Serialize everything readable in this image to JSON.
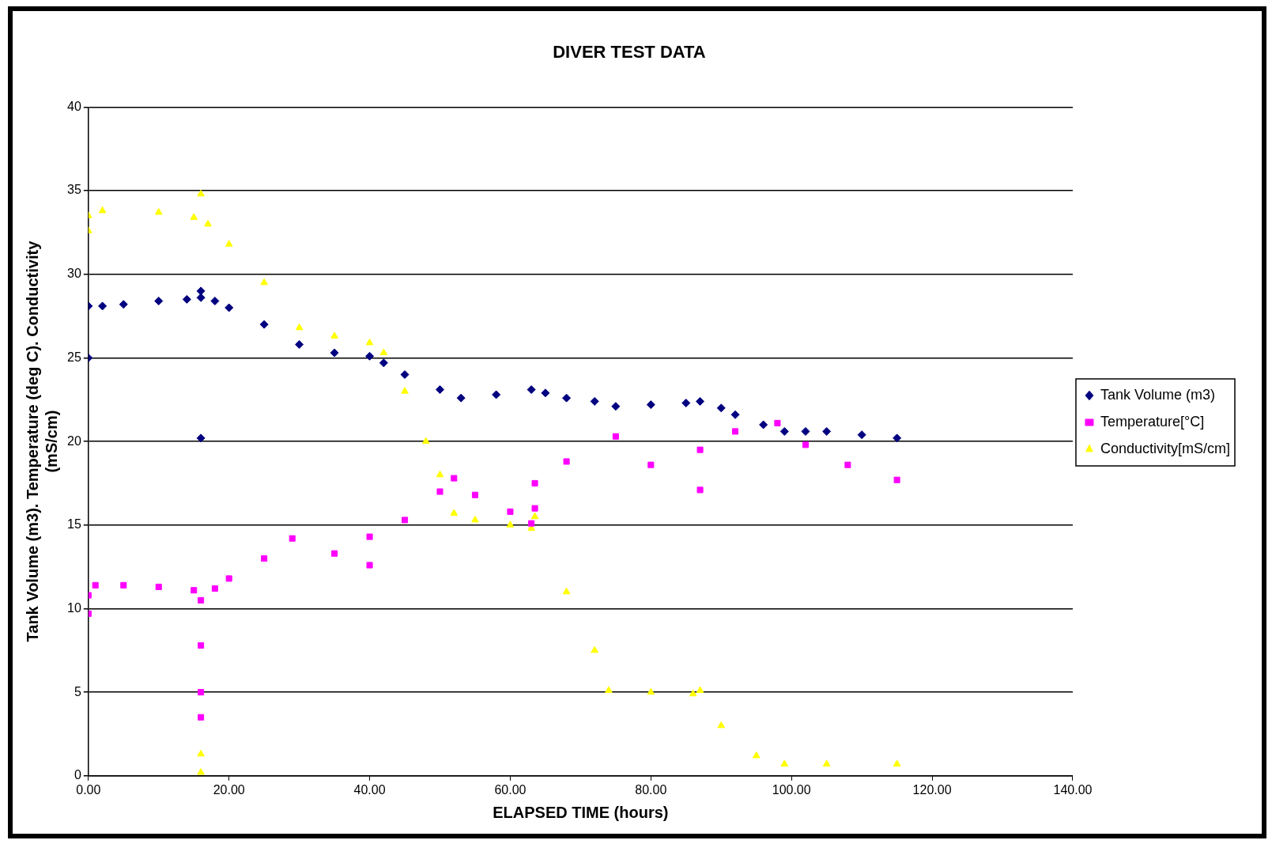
{
  "chart_data": {
    "type": "scatter",
    "title": "DIVER TEST DATA",
    "xlabel": "ELAPSED TIME (hours)",
    "ylabel": "Tank Volume (m3). Temperature (deg C). Conductivity (mS/cm)",
    "xlim": [
      0,
      140
    ],
    "xticks": [
      {
        "value": 0,
        "label": "0.00"
      },
      {
        "value": 20,
        "label": "20.00"
      },
      {
        "value": 40,
        "label": "40.00"
      },
      {
        "value": 60,
        "label": "60.00"
      },
      {
        "value": 80,
        "label": "80.00"
      },
      {
        "value": 100,
        "label": "100.00"
      },
      {
        "value": 120,
        "label": "120.00"
      },
      {
        "value": 140,
        "label": "140.00"
      }
    ],
    "ylim": [
      0,
      40
    ],
    "yticks": [
      0,
      5,
      10,
      15,
      20,
      25,
      30,
      35,
      40
    ],
    "grid": "y",
    "legend": "right",
    "series": [
      {
        "name": "Tank Volume (m3)",
        "color": "#000080",
        "marker": "diamond",
        "x": [
          0,
          0,
          2,
          5,
          10,
          14,
          16,
          16,
          16,
          18,
          20,
          25,
          30,
          35,
          40,
          42,
          45,
          50,
          53,
          58,
          63,
          65,
          68,
          72,
          75,
          80,
          85,
          87,
          90,
          92,
          96,
          99,
          102,
          105,
          110,
          115
        ],
        "values": [
          25,
          28.1,
          28.1,
          28.2,
          28.4,
          28.5,
          28.6,
          29,
          20.2,
          28.4,
          28,
          27,
          25.8,
          25.3,
          25.1,
          24.7,
          24,
          23.1,
          22.6,
          22.8,
          23.1,
          22.9,
          22.6,
          22.4,
          22.1,
          22.2,
          22.3,
          22.4,
          22,
          21.6,
          21,
          20.6,
          20.6,
          20.6,
          20.4,
          20.2
        ]
      },
      {
        "name": "Temperature[°C]",
        "color": "#ff00ff",
        "marker": "square",
        "x": [
          0,
          0,
          1,
          5,
          10,
          15,
          16,
          16,
          16,
          16,
          18,
          20,
          25,
          29,
          35,
          40,
          40,
          45,
          50,
          52,
          55,
          60,
          63,
          63.5,
          63.5,
          68,
          75,
          80,
          87,
          87,
          92,
          98,
          102,
          108,
          115
        ],
        "values": [
          9.7,
          10.8,
          11.4,
          11.4,
          11.3,
          11.1,
          10.5,
          7.8,
          5,
          3.5,
          11.2,
          11.8,
          13,
          14.2,
          13.3,
          12.6,
          14.3,
          15.3,
          17,
          17.8,
          16.8,
          15.8,
          15.1,
          16,
          17.5,
          18.8,
          20.3,
          18.6,
          17.1,
          19.5,
          20.6,
          21.1,
          19.8,
          18.6,
          17.7
        ]
      },
      {
        "name": "Conductivity[mS/cm]",
        "color": "#ffff00",
        "marker": "triangle",
        "x": [
          0,
          0,
          2,
          10,
          15,
          16,
          16,
          16,
          17,
          20,
          25,
          30,
          35,
          40,
          42,
          45,
          48,
          50,
          52,
          55,
          60,
          63,
          63.5,
          68,
          72,
          74,
          80,
          86,
          87,
          90,
          95,
          99,
          105,
          115
        ],
        "values": [
          32.6,
          33.5,
          33.8,
          33.7,
          33.4,
          34.8,
          1.3,
          0.2,
          33,
          31.8,
          29.5,
          26.8,
          26.3,
          25.9,
          25.3,
          23,
          20,
          18,
          15.7,
          15.3,
          15,
          14.8,
          15.5,
          11,
          7.5,
          5.1,
          5,
          4.9,
          5.1,
          3,
          1.2,
          0.7,
          0.7,
          0.7
        ]
      }
    ]
  }
}
